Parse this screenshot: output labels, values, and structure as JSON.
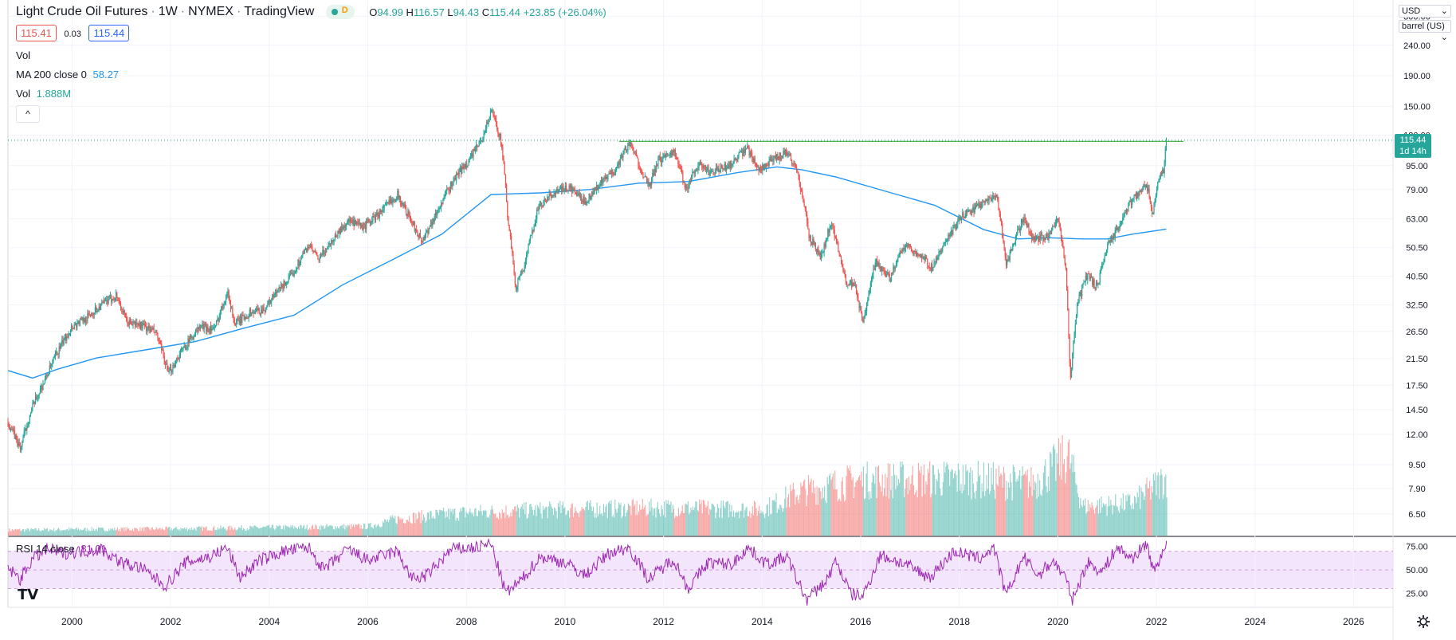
{
  "header": {
    "symbol": "Light Crude Oil Futures",
    "interval": "1W",
    "exchange": "NYMEX",
    "source": "TradingView",
    "status_letter": "D",
    "ohlc": {
      "o_label": "O",
      "o": "94.99",
      "h_label": "H",
      "h": "116.57",
      "l_label": "L",
      "l": "94.43",
      "c_label": "C",
      "c": "115.44",
      "change": "+23.85 (+26.04%)"
    },
    "bid": "115.41",
    "spread": "0.03",
    "ask": "115.44"
  },
  "indicators": {
    "vol_label": "Vol",
    "ma_label": "MA 200 close 0",
    "ma_value": "58.27",
    "vol2_label": "Vol",
    "vol2_value": "1.888M",
    "rsi_label": "RSI 14 close",
    "rsi_value": "81.01"
  },
  "controls": {
    "currency": "USD",
    "unit": "barrel (US)",
    "collapse_icon": "chevron-up-icon",
    "settings_icon": "gear-icon",
    "logo": "TV"
  },
  "price_tag": {
    "value": "115.44",
    "countdown": "1d 14h"
  },
  "colors": {
    "up": "#26a69a",
    "down": "#ef5350",
    "ma": "#2196f3",
    "rsi": "#9c27b0",
    "rsi_band": "#f3e5fc",
    "resistance": "#4caf50",
    "price_tag": "#26a69a"
  },
  "chart_data": {
    "type": "line",
    "title": "Light Crude Oil Futures · 1W · NYMEX",
    "y_scale": "log",
    "price_ticks": [
      "300.00",
      "240.00",
      "190.00",
      "150.00",
      "120.00",
      "95.00",
      "79.00",
      "63.00",
      "50.50",
      "40.50",
      "32.50",
      "26.50",
      "21.50",
      "17.50",
      "14.50",
      "12.00",
      "9.50",
      "7.90",
      "6.50"
    ],
    "rsi_ticks": [
      "75.00",
      "50.00",
      "25.00"
    ],
    "x_ticks": [
      "2000",
      "2002",
      "2004",
      "2006",
      "2008",
      "2010",
      "2012",
      "2014",
      "2016",
      "2018",
      "2020",
      "2022",
      "2024",
      "2026"
    ],
    "resistance_level": 114.5,
    "price_series": [
      [
        1998.7,
        13.2
      ],
      [
        1998.95,
        10.7
      ],
      [
        1999.2,
        14.8
      ],
      [
        1999.45,
        18.2
      ],
      [
        1999.7,
        22.5
      ],
      [
        2000.0,
        27.5
      ],
      [
        2000.3,
        29.5
      ],
      [
        2000.6,
        32.5
      ],
      [
        2000.9,
        35.0
      ],
      [
        2001.1,
        28.5
      ],
      [
        2001.4,
        27.8
      ],
      [
        2001.7,
        26.2
      ],
      [
        2001.95,
        19.0
      ],
      [
        2002.2,
        22.5
      ],
      [
        2002.6,
        27.5
      ],
      [
        2002.9,
        27.0
      ],
      [
        2003.15,
        36.0
      ],
      [
        2003.3,
        28.0
      ],
      [
        2003.6,
        30.5
      ],
      [
        2003.9,
        31.5
      ],
      [
        2004.2,
        36.5
      ],
      [
        2004.45,
        40.5
      ],
      [
        2004.8,
        51.5
      ],
      [
        2005.0,
        46.0
      ],
      [
        2005.3,
        54.0
      ],
      [
        2005.6,
        62.0
      ],
      [
        2005.9,
        59.0
      ],
      [
        2006.2,
        65.0
      ],
      [
        2006.6,
        76.0
      ],
      [
        2006.9,
        61.0
      ],
      [
        2007.1,
        53.0
      ],
      [
        2007.4,
        66.0
      ],
      [
        2007.8,
        88.0
      ],
      [
        2008.0,
        96.0
      ],
      [
        2008.3,
        115.0
      ],
      [
        2008.52,
        145.0
      ],
      [
        2008.7,
        115.0
      ],
      [
        2008.85,
        60.0
      ],
      [
        2009.0,
        37.0
      ],
      [
        2009.2,
        45.0
      ],
      [
        2009.45,
        68.0
      ],
      [
        2009.8,
        78.0
      ],
      [
        2010.1,
        80.0
      ],
      [
        2010.4,
        72.0
      ],
      [
        2010.8,
        85.0
      ],
      [
        2011.0,
        91.0
      ],
      [
        2011.3,
        113.0
      ],
      [
        2011.7,
        80.0
      ],
      [
        2011.9,
        99.0
      ],
      [
        2012.2,
        107.0
      ],
      [
        2012.45,
        79.0
      ],
      [
        2012.7,
        96.0
      ],
      [
        2012.95,
        90.0
      ],
      [
        2013.3,
        94.0
      ],
      [
        2013.7,
        108.0
      ],
      [
        2013.95,
        92.0
      ],
      [
        2014.3,
        101.0
      ],
      [
        2014.5,
        106.0
      ],
      [
        2014.7,
        92.0
      ],
      [
        2014.95,
        55.0
      ],
      [
        2015.2,
        47.0
      ],
      [
        2015.4,
        61.0
      ],
      [
        2015.7,
        39.0
      ],
      [
        2015.9,
        37.0
      ],
      [
        2016.05,
        27.5
      ],
      [
        2016.3,
        45.0
      ],
      [
        2016.6,
        40.0
      ],
      [
        2016.9,
        52.0
      ],
      [
        2017.3,
        46.0
      ],
      [
        2017.45,
        43.0
      ],
      [
        2017.8,
        55.0
      ],
      [
        2018.0,
        63.0
      ],
      [
        2018.4,
        70.0
      ],
      [
        2018.75,
        76.0
      ],
      [
        2018.95,
        44.0
      ],
      [
        2019.3,
        63.0
      ],
      [
        2019.5,
        54.0
      ],
      [
        2019.8,
        55.0
      ],
      [
        2020.0,
        62.0
      ],
      [
        2020.15,
        45.0
      ],
      [
        2020.25,
        17.5
      ],
      [
        2020.4,
        33.0
      ],
      [
        2020.6,
        41.0
      ],
      [
        2020.8,
        37.0
      ],
      [
        2021.0,
        51.0
      ],
      [
        2021.3,
        62.0
      ],
      [
        2021.5,
        73.0
      ],
      [
        2021.8,
        82.0
      ],
      [
        2021.92,
        66.0
      ],
      [
        2022.05,
        86.0
      ],
      [
        2022.15,
        92.0
      ],
      [
        2022.2,
        115.44
      ]
    ],
    "ma200_series": [
      [
        1998.7,
        19.6
      ],
      [
        1999.2,
        18.5
      ],
      [
        1999.7,
        19.8
      ],
      [
        2000.5,
        21.6
      ],
      [
        2001.5,
        23.0
      ],
      [
        2002.5,
        24.5
      ],
      [
        2003.5,
        27.2
      ],
      [
        2004.5,
        30.0
      ],
      [
        2005.5,
        38.0
      ],
      [
        2006.5,
        46.0
      ],
      [
        2007.5,
        56.0
      ],
      [
        2008.5,
        76.0
      ],
      [
        2009.5,
        77.0
      ],
      [
        2010.5,
        79.0
      ],
      [
        2011.5,
        83.0
      ],
      [
        2012.5,
        84.0
      ],
      [
        2013.5,
        90.0
      ],
      [
        2014.3,
        94.0
      ],
      [
        2014.8,
        92.0
      ],
      [
        2015.5,
        87.0
      ],
      [
        2016.5,
        78.0
      ],
      [
        2017.5,
        70.0
      ],
      [
        2018.5,
        58.0
      ],
      [
        2019.2,
        54.0
      ],
      [
        2019.8,
        54.5
      ],
      [
        2020.5,
        54.0
      ],
      [
        2021.0,
        54.0
      ],
      [
        2021.5,
        56.0
      ],
      [
        2022.2,
        58.27
      ]
    ],
    "rsi_series": [
      [
        1998.7,
        52
      ],
      [
        1998.95,
        40
      ],
      [
        1999.2,
        62
      ],
      [
        1999.5,
        72
      ],
      [
        1999.8,
        68
      ],
      [
        2000.2,
        70
      ],
      [
        2000.6,
        72
      ],
      [
        2001.0,
        58
      ],
      [
        2001.4,
        52
      ],
      [
        2001.9,
        33
      ],
      [
        2002.3,
        58
      ],
      [
        2002.8,
        64
      ],
      [
        2003.15,
        74
      ],
      [
        2003.4,
        42
      ],
      [
        2003.8,
        60
      ],
      [
        2004.3,
        70
      ],
      [
        2004.8,
        74
      ],
      [
        2005.1,
        50
      ],
      [
        2005.6,
        72
      ],
      [
        2006.0,
        60
      ],
      [
        2006.6,
        70
      ],
      [
        2006.9,
        40
      ],
      [
        2007.2,
        44
      ],
      [
        2007.7,
        72
      ],
      [
        2008.2,
        74
      ],
      [
        2008.5,
        78
      ],
      [
        2008.8,
        25
      ],
      [
        2009.1,
        38
      ],
      [
        2009.5,
        64
      ],
      [
        2010.0,
        58
      ],
      [
        2010.4,
        44
      ],
      [
        2010.9,
        68
      ],
      [
        2011.3,
        74
      ],
      [
        2011.7,
        40
      ],
      [
        2012.2,
        62
      ],
      [
        2012.5,
        30
      ],
      [
        2012.9,
        58
      ],
      [
        2013.4,
        56
      ],
      [
        2013.7,
        74
      ],
      [
        2014.1,
        56
      ],
      [
        2014.5,
        64
      ],
      [
        2014.9,
        18
      ],
      [
        2015.3,
        38
      ],
      [
        2015.5,
        60
      ],
      [
        2015.8,
        24
      ],
      [
        2016.05,
        22
      ],
      [
        2016.4,
        66
      ],
      [
        2016.9,
        56
      ],
      [
        2017.4,
        42
      ],
      [
        2017.9,
        70
      ],
      [
        2018.4,
        62
      ],
      [
        2018.7,
        74
      ],
      [
        2018.95,
        22
      ],
      [
        2019.3,
        64
      ],
      [
        2019.6,
        44
      ],
      [
        2019.9,
        60
      ],
      [
        2020.15,
        42
      ],
      [
        2020.3,
        18
      ],
      [
        2020.6,
        58
      ],
      [
        2020.9,
        48
      ],
      [
        2021.2,
        74
      ],
      [
        2021.5,
        62
      ],
      [
        2021.8,
        78
      ],
      [
        2021.95,
        48
      ],
      [
        2022.1,
        66
      ],
      [
        2022.2,
        81.01
      ]
    ],
    "volume_series": [
      [
        1998.7,
        0.18
      ],
      [
        2000.0,
        0.2
      ],
      [
        2002.0,
        0.22
      ],
      [
        2004.0,
        0.26
      ],
      [
        2006.0,
        0.3
      ],
      [
        2006.6,
        0.55
      ],
      [
        2008.0,
        0.75
      ],
      [
        2010.0,
        0.85
      ],
      [
        2012.0,
        0.9
      ],
      [
        2014.0,
        0.85
      ],
      [
        2014.8,
        1.45
      ],
      [
        2016.0,
        1.8
      ],
      [
        2018.0,
        1.85
      ],
      [
        2019.5,
        1.7
      ],
      [
        2020.2,
        2.6
      ],
      [
        2020.5,
        0.95
      ],
      [
        2021.5,
        1.05
      ],
      [
        2022.2,
        1.888
      ]
    ],
    "volume_unit": "M",
    "xlim": [
      1998.7,
      2026.8
    ],
    "ylim": [
      5.5,
      340
    ],
    "rsi_ylim": [
      10,
      85
    ],
    "grid": true,
    "legend_position": "top-left"
  }
}
